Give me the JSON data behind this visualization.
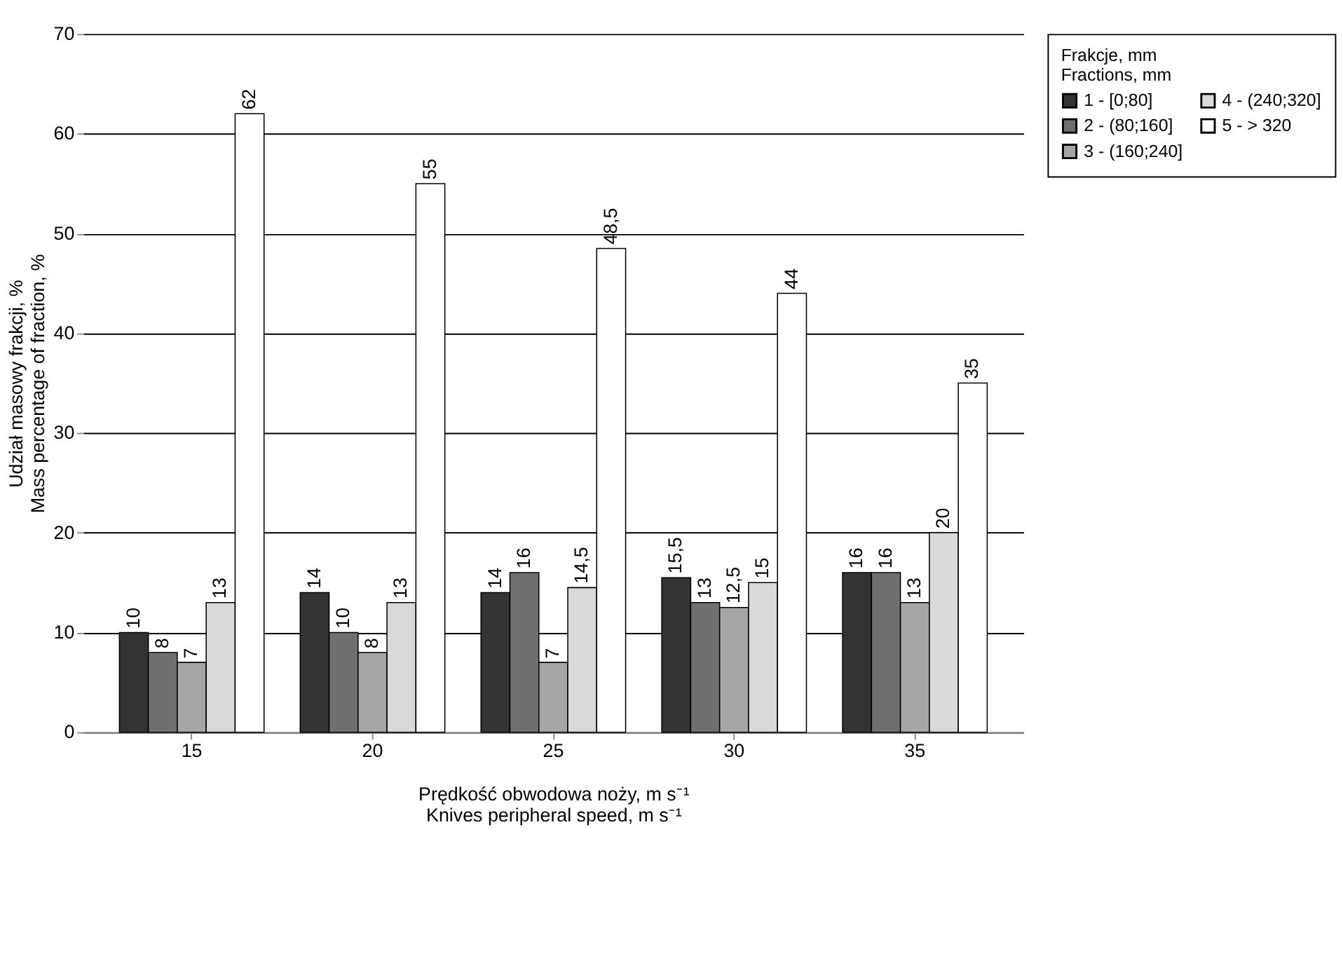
{
  "chart_data": {
    "type": "bar",
    "xlabel": "Prędkość obwodowa noży, m s⁻¹\nKnives peripheral speed, m s⁻¹",
    "ylabel": "Udział masowy frakcji, %\nMass percentage of fraction, %",
    "legend_title": "Frakcje, mm\nFractions, mm",
    "categories": [
      "15",
      "20",
      "25",
      "30",
      "35"
    ],
    "series": [
      {
        "name": "1 - [0;80]",
        "color": "#333333",
        "values": [
          10,
          14,
          14,
          15.5,
          16
        ],
        "value_labels": [
          "10",
          "14",
          "14",
          "15,5",
          "16"
        ]
      },
      {
        "name": "2 - (80;160]",
        "color": "#707070",
        "values": [
          8,
          10,
          16,
          13,
          16
        ],
        "value_labels": [
          "8",
          "10",
          "16",
          "13",
          "16"
        ]
      },
      {
        "name": "3 - (160;240]",
        "color": "#a6a6a6",
        "values": [
          7,
          8,
          7,
          12.5,
          13
        ],
        "value_labels": [
          "7",
          "8",
          "7",
          "12,5",
          "13"
        ]
      },
      {
        "name": "4 - (240;320]",
        "color": "#d9d9d9",
        "values": [
          13,
          13,
          14.5,
          15,
          20
        ],
        "value_labels": [
          "13",
          "13",
          "14,5",
          "15",
          "20"
        ]
      },
      {
        "name": "5 - > 320",
        "color": "#ffffff",
        "values": [
          62,
          55,
          48.5,
          44,
          35
        ],
        "value_labels": [
          "62",
          "55",
          "48,5",
          "44",
          "35"
        ]
      }
    ],
    "ylim": [
      0,
      70
    ],
    "yticks": [
      0,
      10,
      20,
      30,
      40,
      50,
      60,
      70
    ],
    "grid": "y",
    "legend": "top right"
  }
}
